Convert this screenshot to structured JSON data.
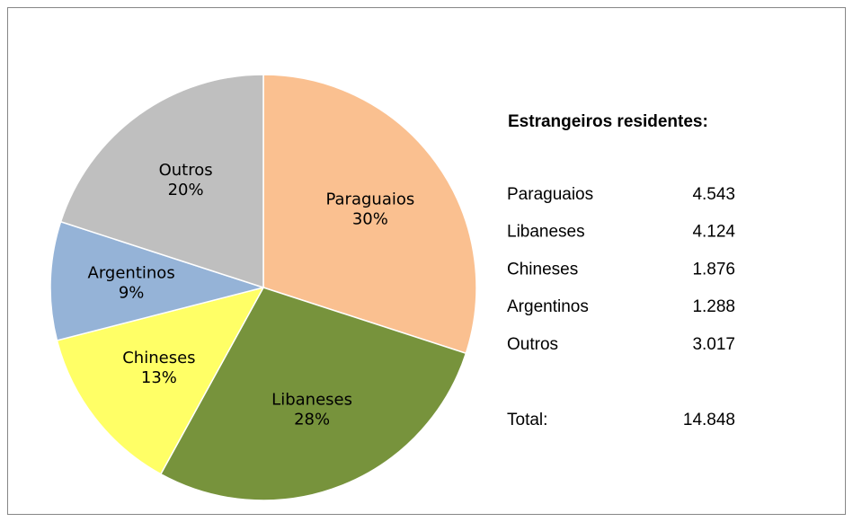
{
  "chart_data": {
    "type": "pie",
    "categories": [
      "Paraguaios",
      "Libaneses",
      "Chineses",
      "Argentinos",
      "Outros"
    ],
    "values": [
      30,
      28,
      13,
      9,
      20
    ],
    "value_labels": [
      "30%",
      "28%",
      "13%",
      "9%",
      "20%"
    ],
    "colors": [
      "#fac090",
      "#77933c",
      "#ffff66",
      "#95b3d7",
      "#bfbfbf"
    ],
    "table": {
      "title": "Estrangeiros residentes:",
      "rows": [
        [
          "Paraguaios",
          "4.543"
        ],
        [
          "Libaneses",
          "4.124"
        ],
        [
          "Chineses",
          "1.876"
        ],
        [
          "Argentinos",
          "1.288"
        ],
        [
          "Outros",
          "3.017"
        ]
      ],
      "total": [
        "Total:",
        "14.848"
      ]
    }
  }
}
